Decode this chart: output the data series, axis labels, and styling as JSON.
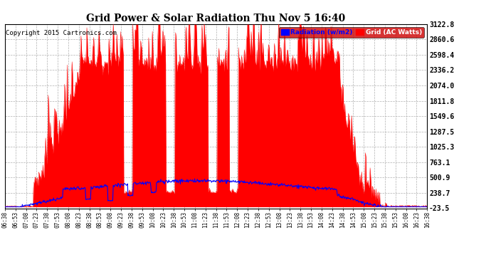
{
  "title": "Grid Power & Solar Radiation Thu Nov 5 16:40",
  "copyright": "Copyright 2015 Cartronics.com",
  "legend_labels": [
    "Radiation (w/m2)",
    "Grid (AC Watts)"
  ],
  "legend_colors": [
    "#0000ff",
    "#ff0000"
  ],
  "y_ticks": [
    -23.5,
    238.7,
    500.9,
    763.1,
    1025.3,
    1287.5,
    1549.6,
    1811.8,
    2074.0,
    2336.2,
    2598.4,
    2860.6,
    3122.8
  ],
  "y_min": -23.5,
  "y_max": 3122.8,
  "background_color": "#ffffff",
  "plot_bg_color": "#ffffff",
  "grid_color": "#b0b0b0",
  "red_fill_color": "#ff0000",
  "blue_line_color": "#0000ff",
  "title_color": "#000000",
  "n_points": 800,
  "x_tick_labels": [
    "06:38",
    "06:53",
    "07:08",
    "07:23",
    "07:38",
    "07:53",
    "08:08",
    "08:23",
    "08:38",
    "08:53",
    "09:08",
    "09:23",
    "09:38",
    "09:53",
    "10:08",
    "10:23",
    "10:38",
    "10:53",
    "11:08",
    "11:23",
    "11:38",
    "11:53",
    "12:08",
    "12:23",
    "12:38",
    "12:53",
    "13:08",
    "13:23",
    "13:38",
    "13:53",
    "14:08",
    "14:23",
    "14:38",
    "14:53",
    "15:08",
    "15:23",
    "15:38",
    "15:53",
    "16:08",
    "16:23",
    "16:38"
  ]
}
